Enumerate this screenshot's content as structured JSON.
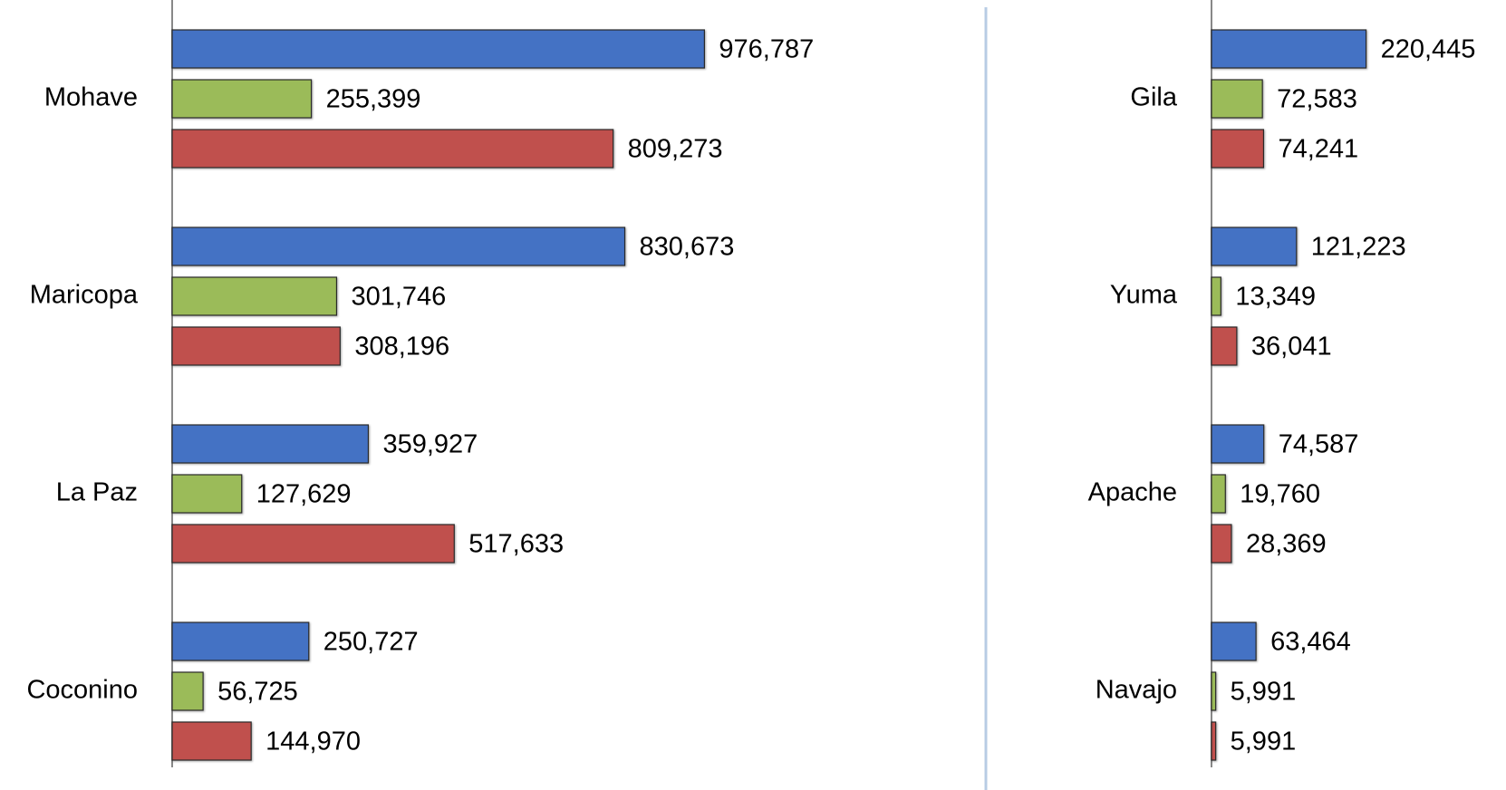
{
  "chart_data": [
    {
      "type": "bar",
      "orientation": "horizontal",
      "categories": [
        "Mohave",
        "Maricopa",
        "La Paz",
        "Coconino"
      ],
      "series": [
        {
          "color": "#4472c4",
          "values": [
            976787,
            830673,
            359927,
            250727
          ],
          "value_labels": [
            "976,787",
            "830,673",
            "359,927",
            "250,727"
          ]
        },
        {
          "color": "#9bbb59",
          "values": [
            255399,
            301746,
            127629,
            56725
          ],
          "value_labels": [
            "255,399",
            "301,746",
            "127,629",
            "56,725"
          ]
        },
        {
          "color": "#c0504d",
          "values": [
            809273,
            308196,
            517633,
            144970
          ],
          "value_labels": [
            "809,273",
            "308,196",
            "517,633",
            "144,970"
          ]
        }
      ],
      "xlim": [
        0,
        1480000
      ]
    },
    {
      "type": "bar",
      "orientation": "horizontal",
      "categories": [
        "Gila",
        "Yuma",
        "Apache",
        "Navajo"
      ],
      "series": [
        {
          "color": "#4472c4",
          "values": [
            220445,
            121223,
            74587,
            63464
          ],
          "value_labels": [
            "220,445",
            "121,223",
            "74,587",
            "63,464"
          ]
        },
        {
          "color": "#9bbb59",
          "values": [
            72583,
            13349,
            19760,
            5991
          ],
          "value_labels": [
            "72,583",
            "13,349",
            "19,760",
            "5,991"
          ]
        },
        {
          "color": "#c0504d",
          "values": [
            74241,
            36041,
            28369,
            5991
          ],
          "value_labels": [
            "74,241",
            "36,041",
            "28,369",
            "5,991"
          ]
        }
      ],
      "xlim": [
        0,
        420000
      ]
    }
  ]
}
